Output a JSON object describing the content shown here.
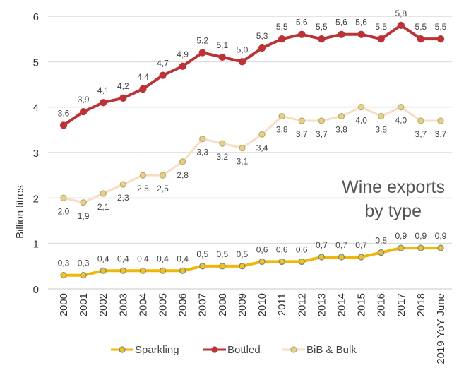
{
  "chart_data": {
    "type": "line",
    "title": "Wine exports by type",
    "title_lines": [
      "Wine exports",
      "by type"
    ],
    "xlabel": "",
    "ylabel": "Billion litres",
    "ylim": [
      0,
      6
    ],
    "yticks": [
      "0",
      "1",
      "2",
      "3",
      "4",
      "5",
      "6"
    ],
    "grid": true,
    "legend_placement": "bottom",
    "categories": [
      "2000",
      "2001",
      "2002",
      "2003",
      "2004",
      "2005",
      "2006",
      "2007",
      "2008",
      "2009",
      "2010",
      "2011",
      "2012",
      "2013",
      "2014",
      "2015",
      "2016",
      "2017",
      "2018",
      "2019 YoY June"
    ],
    "series": [
      {
        "name": "Sparkling",
        "color": "#f2b705",
        "marker_color": "#f5c21b",
        "marker_edge": "#7d8a8a",
        "label_position": "above",
        "values": [
          0.3,
          0.3,
          0.4,
          0.4,
          0.4,
          0.4,
          0.4,
          0.5,
          0.5,
          0.5,
          0.6,
          0.6,
          0.6,
          0.7,
          0.7,
          0.7,
          0.8,
          0.9,
          0.9,
          0.9
        ]
      },
      {
        "name": "Bottled",
        "color": "#bb3336",
        "marker_color": "#bb3336",
        "marker_edge": "#bb3336",
        "label_position": "above",
        "values": [
          3.6,
          3.9,
          4.1,
          4.2,
          4.4,
          4.7,
          4.9,
          5.2,
          5.1,
          5.0,
          5.3,
          5.5,
          5.6,
          5.5,
          5.6,
          5.6,
          5.5,
          5.8,
          5.5,
          5.5
        ]
      },
      {
        "name": "BiB & Bulk",
        "color": "#f9dcc4",
        "marker_color": "#f3c98e",
        "marker_edge": "#a9b86a",
        "label_position": "below",
        "values": [
          2.0,
          1.9,
          2.1,
          2.3,
          2.5,
          2.5,
          2.8,
          3.3,
          3.2,
          3.1,
          3.4,
          3.8,
          3.7,
          3.7,
          3.8,
          4.0,
          3.8,
          4.0,
          3.7,
          3.7
        ]
      }
    ],
    "decimal_separator": ","
  }
}
